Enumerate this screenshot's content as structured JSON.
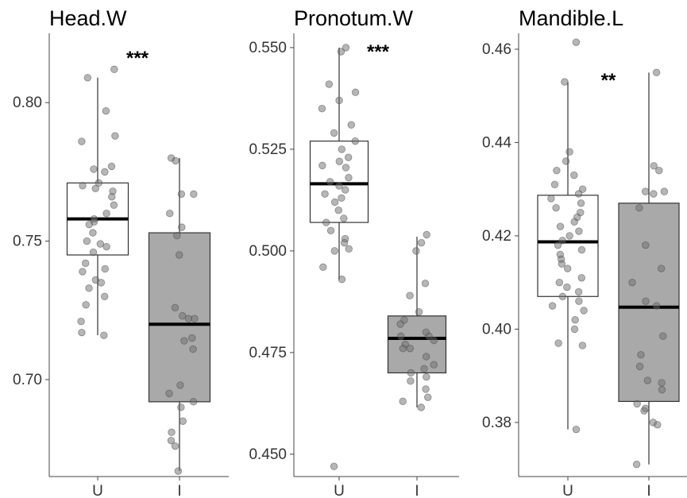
{
  "chart_data": [
    {
      "type": "box",
      "title": "Head.W",
      "categories": [
        "U",
        "I"
      ],
      "ylim": [
        0.665,
        0.825
      ],
      "yticks": [
        0.7,
        0.75,
        0.8
      ],
      "ytick_labels": [
        "0.70",
        "0.75",
        "0.80"
      ],
      "significance": "***",
      "boxes": [
        {
          "category": "U",
          "fill": "#ffffff",
          "lower_whisker": 0.716,
          "q1": 0.745,
          "median": 0.758,
          "q3": 0.771,
          "upper_whisker": 0.809
        },
        {
          "category": "I",
          "fill": "#a9a9a9",
          "lower_whisker": 0.667,
          "q1": 0.692,
          "median": 0.72,
          "q3": 0.753,
          "upper_whisker": 0.78
        }
      ],
      "points": [
        {
          "category": "U",
          "values": [
            0.812,
            0.809,
            0.797,
            0.788,
            0.786,
            0.777,
            0.776,
            0.775,
            0.771,
            0.77,
            0.769,
            0.768,
            0.766,
            0.763,
            0.76,
            0.758,
            0.757,
            0.756,
            0.753,
            0.75,
            0.749,
            0.748,
            0.746,
            0.742,
            0.74,
            0.739,
            0.736,
            0.735,
            0.733,
            0.73,
            0.727,
            0.721,
            0.717,
            0.716
          ]
        },
        {
          "category": "I",
          "values": [
            0.78,
            0.779,
            0.767,
            0.767,
            0.76,
            0.755,
            0.752,
            0.745,
            0.726,
            0.723,
            0.722,
            0.722,
            0.715,
            0.714,
            0.711,
            0.698,
            0.695,
            0.692,
            0.69,
            0.685,
            0.681,
            0.678,
            0.676,
            0.667
          ]
        }
      ]
    },
    {
      "type": "box",
      "title": "Pronotum.W",
      "categories": [
        "U",
        "I"
      ],
      "ylim": [
        0.4445,
        0.5535
      ],
      "yticks": [
        0.45,
        0.475,
        0.5,
        0.525,
        0.55
      ],
      "ytick_labels": [
        "0.450",
        "0.475",
        "0.500",
        "0.525",
        "0.550"
      ],
      "significance": "***",
      "boxes": [
        {
          "category": "U",
          "fill": "#ffffff",
          "lower_whisker": 0.493,
          "q1": 0.507,
          "median": 0.5165,
          "q3": 0.527,
          "upper_whisker": 0.55
        },
        {
          "category": "I",
          "fill": "#a9a9a9",
          "lower_whisker": 0.4615,
          "q1": 0.47,
          "median": 0.4785,
          "q3": 0.484,
          "upper_whisker": 0.5035
        }
      ],
      "points": [
        {
          "category": "U",
          "values": [
            0.55,
            0.549,
            0.541,
            0.539,
            0.537,
            0.535,
            0.531,
            0.529,
            0.527,
            0.525,
            0.523,
            0.522,
            0.521,
            0.5205,
            0.518,
            0.517,
            0.516,
            0.515,
            0.514,
            0.513,
            0.512,
            0.51,
            0.508,
            0.507,
            0.505,
            0.503,
            0.502,
            0.5005,
            0.5,
            0.496,
            0.493,
            0.447
          ]
        },
        {
          "category": "I",
          "values": [
            0.504,
            0.502,
            0.5,
            0.492,
            0.489,
            0.485,
            0.483,
            0.482,
            0.48,
            0.479,
            0.479,
            0.478,
            0.477,
            0.476,
            0.476,
            0.474,
            0.472,
            0.471,
            0.47,
            0.469,
            0.468,
            0.466,
            0.464,
            0.463,
            0.4615
          ]
        }
      ]
    },
    {
      "type": "box",
      "title": "Mandible.L",
      "categories": [
        "U",
        "I"
      ],
      "ylim": [
        0.3684,
        0.4634
      ],
      "yticks": [
        0.38,
        0.4,
        0.42,
        0.44,
        0.46
      ],
      "ytick_labels": [
        "0.38",
        "0.40",
        "0.42",
        "0.44",
        "0.46"
      ],
      "significance": "**",
      "boxes": [
        {
          "category": "U",
          "fill": "#ffffff",
          "lower_whisker": 0.3785,
          "q1": 0.407,
          "median": 0.4187,
          "q3": 0.4287,
          "upper_whisker": 0.453
        },
        {
          "category": "I",
          "fill": "#a9a9a9",
          "lower_whisker": 0.371,
          "q1": 0.3845,
          "median": 0.4047,
          "q3": 0.427,
          "upper_whisker": 0.455
        }
      ],
      "points": [
        {
          "category": "U",
          "values": [
            0.4615,
            0.453,
            0.438,
            0.436,
            0.434,
            0.433,
            0.431,
            0.43,
            0.429,
            0.428,
            0.427,
            0.426,
            0.425,
            0.424,
            0.423,
            0.422,
            0.421,
            0.42,
            0.419,
            0.418,
            0.417,
            0.416,
            0.415,
            0.414,
            0.413,
            0.411,
            0.41,
            0.409,
            0.408,
            0.407,
            0.406,
            0.405,
            0.404,
            0.402,
            0.4,
            0.397,
            0.3965,
            0.3785
          ]
        },
        {
          "category": "I",
          "values": [
            0.455,
            0.435,
            0.434,
            0.4295,
            0.429,
            0.4295,
            0.426,
            0.418,
            0.413,
            0.41,
            0.406,
            0.405,
            0.3985,
            0.3945,
            0.392,
            0.389,
            0.3885,
            0.387,
            0.384,
            0.383,
            0.3825,
            0.38,
            0.3795,
            0.371
          ]
        }
      ]
    }
  ]
}
